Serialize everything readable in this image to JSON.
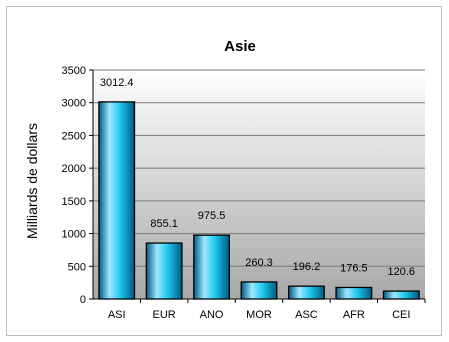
{
  "chart_data": {
    "type": "bar",
    "title": "Asie",
    "xlabel": "",
    "ylabel": "Milliards de dollars",
    "categories": [
      "ASI",
      "EUR",
      "ANO",
      "MOR",
      "ASC",
      "AFR",
      "CEI"
    ],
    "values": [
      3012.4,
      855.1,
      975.5,
      260.3,
      196.2,
      176.5,
      120.6
    ],
    "data_labels": [
      "3012.4",
      "855.1",
      "975.5",
      "260.3",
      "196.2",
      "176.5",
      "120.6"
    ],
    "ylim": [
      0,
      3500
    ],
    "yticks": [
      "0",
      "500",
      "1000",
      "1500",
      "2000",
      "2500",
      "3000",
      "3500"
    ],
    "grid": true,
    "legend": "none",
    "colors": {
      "bar_light": "#9fe8ff",
      "bar_mid": "#1ec8f0",
      "bar_dark": "#005b80",
      "plot_top": "#ffffff",
      "plot_bottom": "#a8a8a8"
    }
  }
}
